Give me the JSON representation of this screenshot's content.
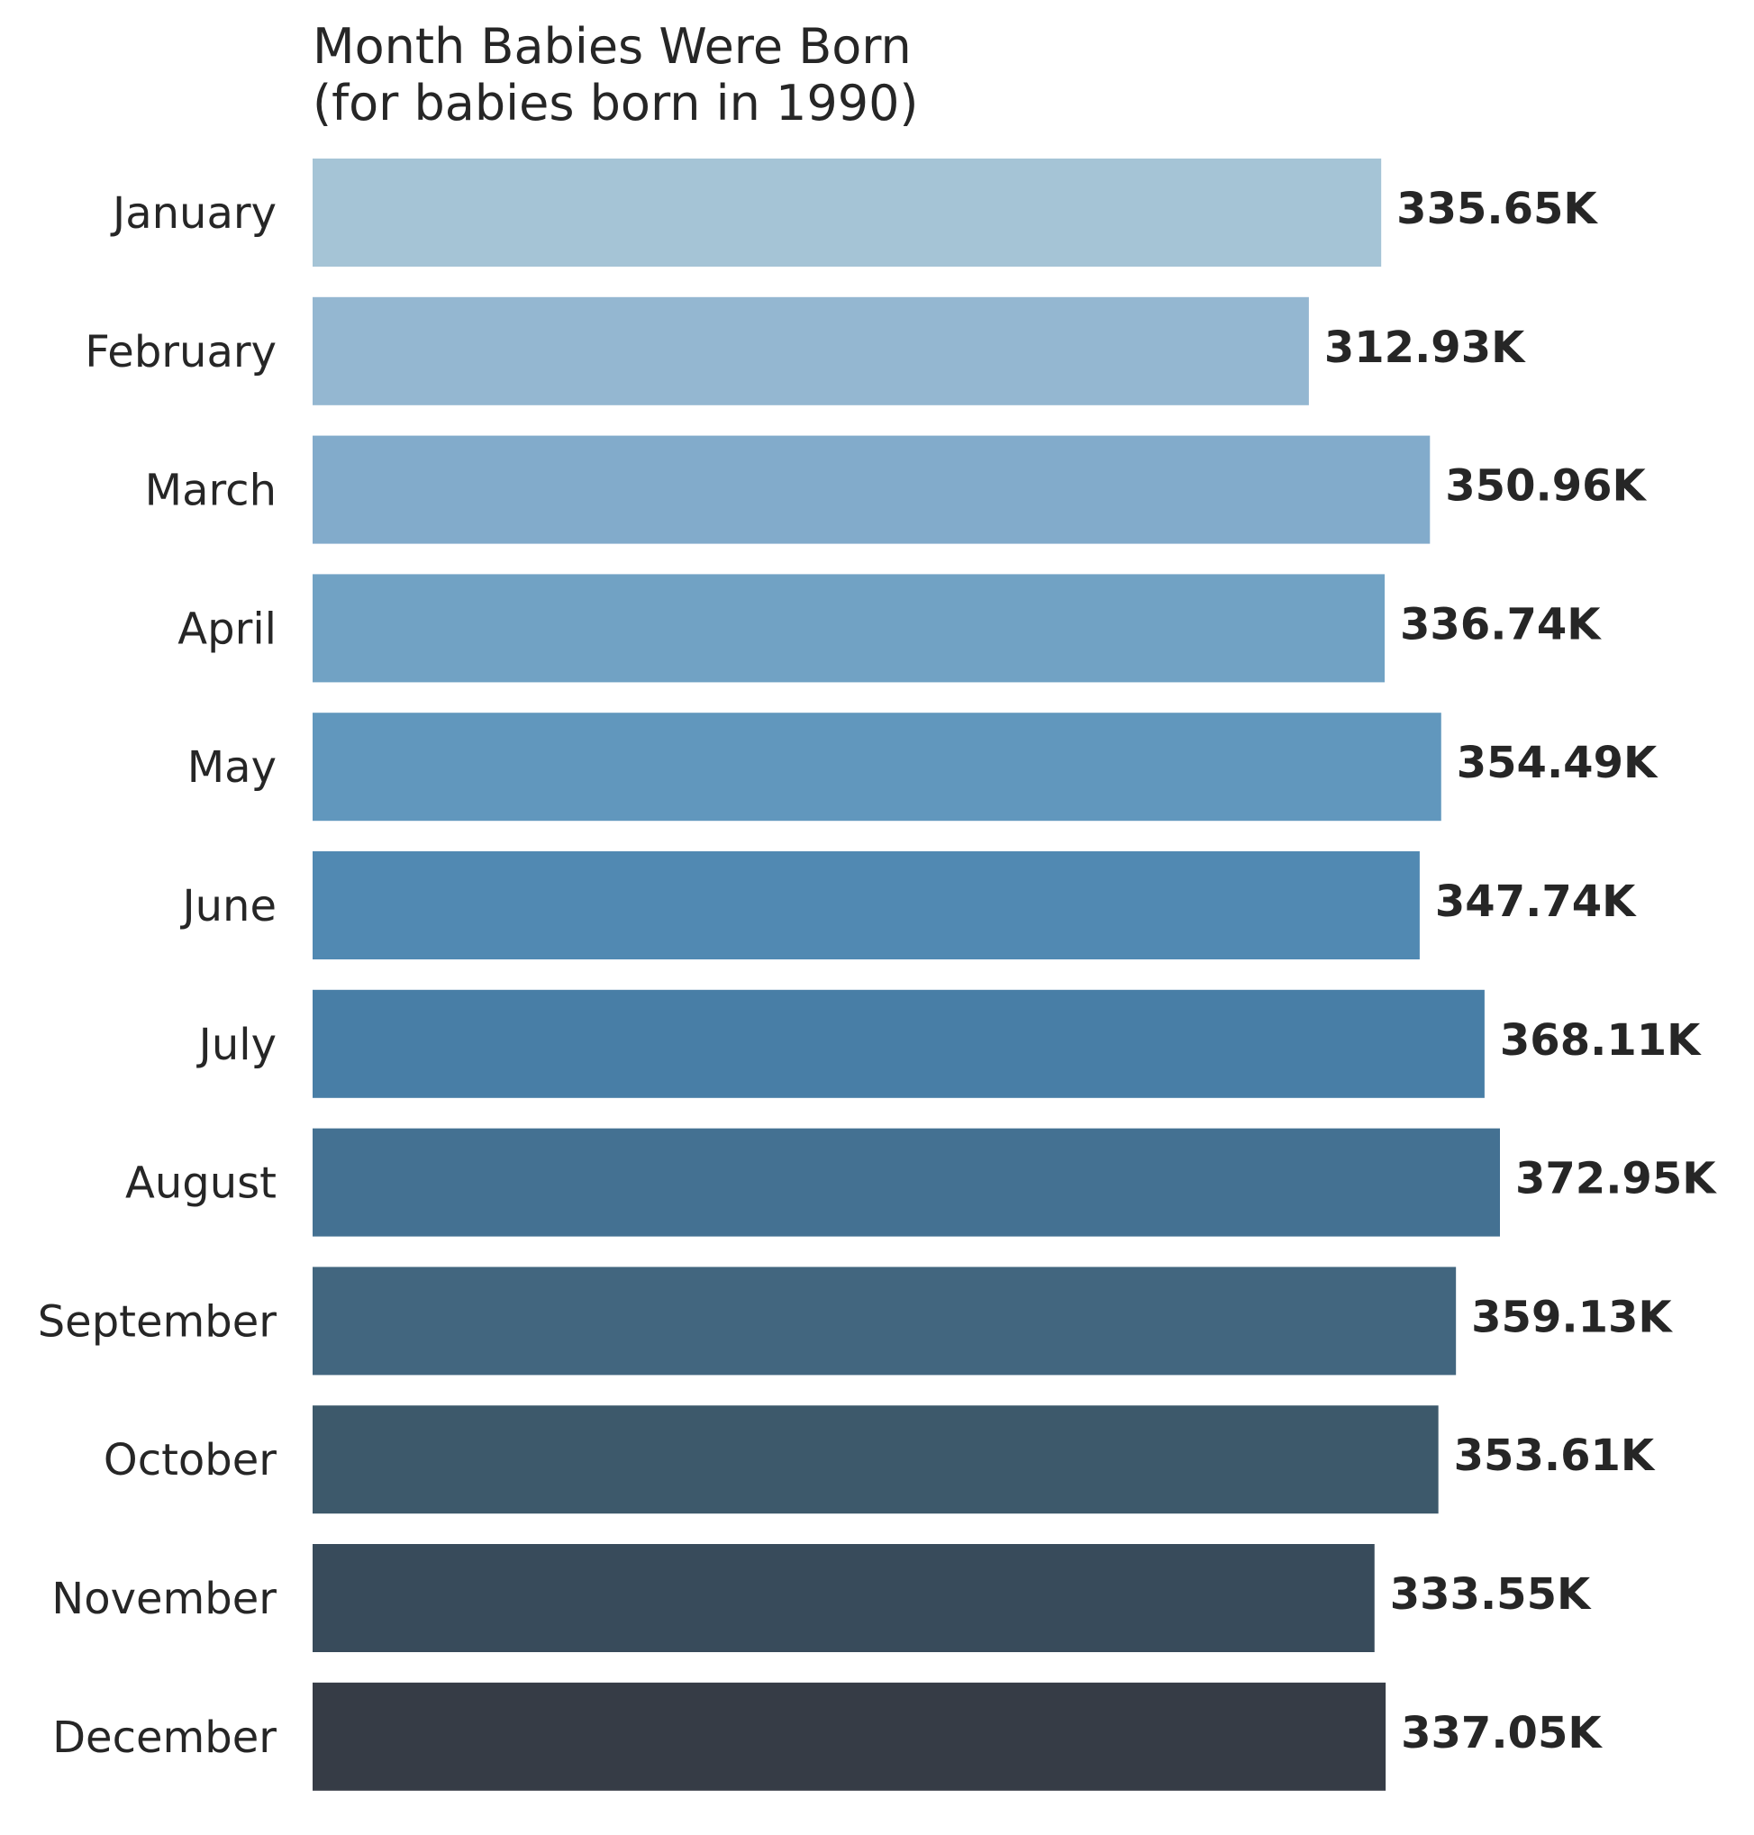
{
  "chart_data": {
    "type": "bar",
    "orientation": "horizontal",
    "title": "Month Babies Were Born",
    "subtitle": "(for babies born in 1990)",
    "xlabel": "",
    "ylabel": "",
    "grid": false,
    "xlim": [
      0,
      390000
    ],
    "categories": [
      "January",
      "February",
      "March",
      "April",
      "May",
      "June",
      "July",
      "August",
      "September",
      "October",
      "November",
      "December"
    ],
    "values": [
      335650,
      312930,
      350960,
      336740,
      354490,
      347740,
      368110,
      372950,
      359130,
      353610,
      333550,
      337050
    ],
    "data_labels": [
      "335.65K",
      "312.93K",
      "350.96K",
      "336.74K",
      "354.49K",
      "347.74K",
      "368.11K",
      "372.95K",
      "359.13K",
      "353.61K",
      "333.55K",
      "337.05K"
    ],
    "colors": [
      "#a5c4d6",
      "#94b7d1",
      "#82abcb",
      "#71a2c4",
      "#6197bd",
      "#5189b2",
      "#487ea6",
      "#447192",
      "#42667f",
      "#3d596b",
      "#384b5b",
      "#363c46"
    ]
  }
}
